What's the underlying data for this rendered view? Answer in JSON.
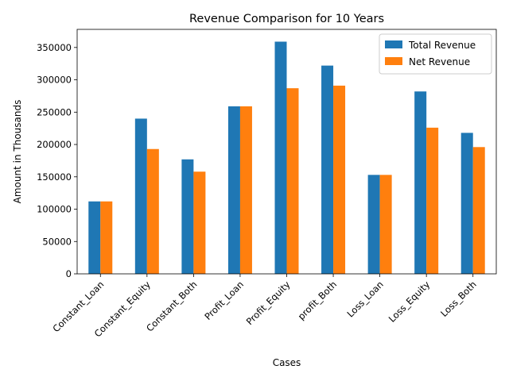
{
  "chart_data": {
    "type": "bar",
    "title": "Revenue Comparison for 10 Years",
    "xlabel": "Cases",
    "ylabel": "Amount in Thousands",
    "categories": [
      "Constant_Loan",
      "Constant_Equity",
      "Constant_Both",
      "Profit_Loan",
      "Profit_Equity",
      "profit_Both",
      "Loss_Loan",
      "Loss_Equity",
      "Loss_Both"
    ],
    "series": [
      {
        "name": "Total Revenue",
        "color": "#1f77b4",
        "values": [
          112000,
          240000,
          177000,
          259000,
          359000,
          322000,
          153000,
          282000,
          218000
        ]
      },
      {
        "name": "Net Revenue",
        "color": "#ff7f0e",
        "values": [
          112000,
          193000,
          158000,
          259000,
          287000,
          291000,
          153000,
          226000,
          196000
        ]
      }
    ],
    "ylim": [
      0,
      378000
    ],
    "yticks": [
      0,
      50000,
      100000,
      150000,
      200000,
      250000,
      300000,
      350000
    ],
    "grid": false,
    "legend_position": "top-right"
  }
}
